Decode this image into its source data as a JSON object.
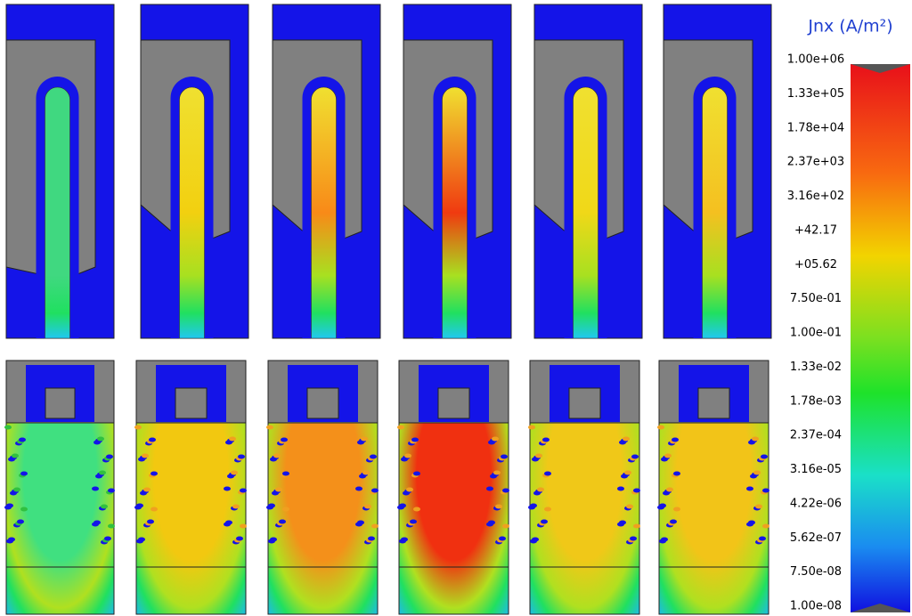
{
  "colorbar": {
    "title": "Jnx (A/m²)",
    "labels": [
      "1.00e+06",
      "1.33e+05",
      "1.78e+04",
      "2.37e+03",
      "3.16e+02",
      "+42.17",
      "+05.62",
      "7.50e-01",
      "1.00e-01",
      "1.33e-02",
      "1.78e-03",
      "2.37e-04",
      "3.16e-05",
      "4.22e-06",
      "5.62e-07",
      "7.50e-08",
      "1.00e-08"
    ]
  }
}
